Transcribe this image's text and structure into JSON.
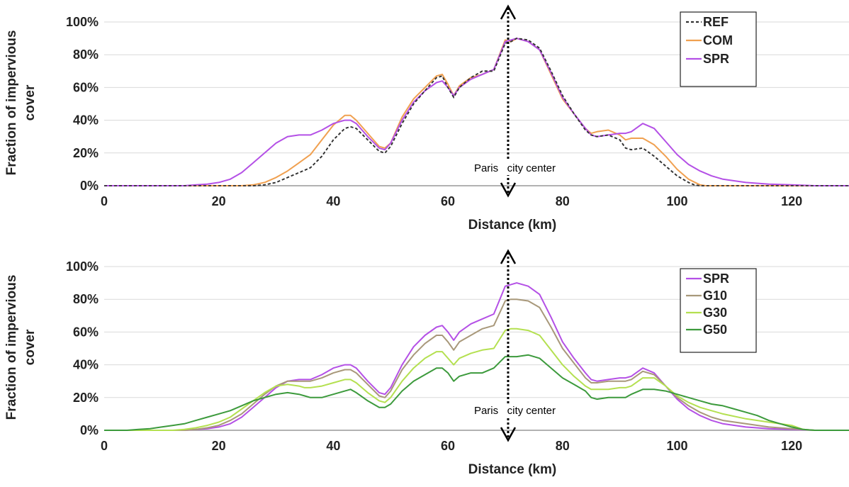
{
  "chart_data": [
    {
      "type": "line",
      "xlabel": "Distance (km)",
      "ylabel": "Fraction of impervious cover",
      "xlim": [
        0,
        130
      ],
      "ylim": [
        0,
        100
      ],
      "xticks": [
        "0",
        "20",
        "40",
        "60",
        "80",
        "100",
        "120"
      ],
      "yticks": [
        "0%",
        "20%",
        "40%",
        "60%",
        "80%",
        "100%"
      ],
      "grid": "horizontal",
      "legend": "top-right",
      "annotation": {
        "text": "Paris   city center",
        "x": 70.5
      },
      "series": [
        {
          "name": "REF",
          "color": "#333333",
          "dash": true,
          "x": [
            0,
            20,
            26,
            28,
            30,
            32,
            34,
            36,
            38,
            40,
            42,
            43,
            44,
            46,
            48,
            49,
            50,
            52,
            54,
            56,
            58,
            59,
            60,
            61,
            62,
            64,
            66,
            68,
            70,
            71,
            72,
            74,
            76,
            78,
            80,
            82,
            84,
            85,
            86,
            88,
            90,
            91,
            92,
            94,
            96,
            98,
            100,
            102,
            103,
            104,
            110,
            130
          ],
          "y": [
            0,
            0,
            0,
            0.5,
            2,
            5,
            8,
            11,
            18,
            28,
            35,
            36,
            35,
            28,
            21,
            20,
            24,
            38,
            50,
            58,
            66,
            67,
            60,
            54,
            60,
            66,
            70,
            70,
            87,
            88,
            90,
            89,
            84,
            70,
            55,
            44,
            34,
            31,
            30,
            31,
            28,
            23,
            22,
            23,
            18,
            12,
            6,
            2,
            0.5,
            0,
            0,
            0
          ]
        },
        {
          "name": "COM",
          "color": "#f0a050",
          "dash": false,
          "x": [
            0,
            20,
            24,
            26,
            28,
            30,
            32,
            34,
            36,
            38,
            40,
            42,
            43,
            44,
            46,
            48,
            49,
            50,
            52,
            54,
            56,
            58,
            59,
            60,
            61,
            62,
            64,
            66,
            68,
            70,
            71,
            72,
            74,
            76,
            78,
            80,
            82,
            84,
            85,
            86,
            88,
            90,
            91,
            92,
            94,
            96,
            98,
            100,
            102,
            104,
            105,
            110,
            130
          ],
          "y": [
            0,
            0,
            0,
            0.5,
            2,
            5,
            9,
            14,
            19,
            28,
            37,
            43,
            43,
            40,
            32,
            24,
            23,
            26,
            42,
            53,
            60,
            67,
            68,
            62,
            55,
            61,
            66,
            68,
            71,
            89,
            88,
            90,
            88,
            83,
            68,
            53,
            44,
            35,
            32,
            33,
            34,
            31,
            28,
            29,
            29,
            25,
            18,
            10,
            4,
            0.5,
            0,
            0,
            0
          ]
        },
        {
          "name": "SPR",
          "color": "#b450e6",
          "dash": false,
          "x": [
            0,
            14,
            16,
            18,
            20,
            22,
            24,
            26,
            28,
            30,
            32,
            34,
            35,
            36,
            38,
            40,
            42,
            43,
            44,
            46,
            48,
            49,
            50,
            52,
            54,
            56,
            58,
            59,
            60,
            61,
            62,
            64,
            66,
            68,
            70,
            71,
            72,
            74,
            76,
            78,
            80,
            82,
            84,
            85,
            86,
            88,
            90,
            91,
            92,
            94,
            96,
            98,
            100,
            102,
            104,
            106,
            108,
            112,
            116,
            120,
            124,
            130
          ],
          "y": [
            0,
            0,
            0.5,
            1,
            2,
            4,
            8,
            14,
            20,
            26,
            30,
            31,
            31,
            31,
            34,
            38,
            40,
            40,
            38,
            30,
            23,
            22,
            26,
            40,
            51,
            58,
            63,
            64,
            60,
            55,
            60,
            65,
            68,
            71,
            88,
            89,
            90,
            88,
            83,
            69,
            54,
            44,
            35,
            31,
            30,
            31,
            32,
            32,
            33,
            38,
            35,
            27,
            19,
            13,
            9,
            6,
            4,
            2,
            1,
            0.5,
            0,
            0
          ]
        }
      ]
    },
    {
      "type": "line",
      "xlabel": "Distance (km)",
      "ylabel": "Fraction of impervious cover",
      "xlim": [
        0,
        130
      ],
      "ylim": [
        0,
        100
      ],
      "xticks": [
        "0",
        "20",
        "40",
        "60",
        "80",
        "100",
        "120"
      ],
      "yticks": [
        "0%",
        "20%",
        "40%",
        "60%",
        "80%",
        "100%"
      ],
      "grid": "horizontal",
      "legend": "top-right",
      "annotation": {
        "text": "Paris   city center",
        "x": 70.5
      },
      "series": [
        {
          "name": "SPR",
          "color": "#b450e6",
          "dash": false,
          "x": [
            0,
            14,
            16,
            18,
            20,
            22,
            24,
            26,
            28,
            30,
            32,
            34,
            35,
            36,
            38,
            40,
            42,
            43,
            44,
            46,
            48,
            49,
            50,
            52,
            54,
            56,
            58,
            59,
            60,
            61,
            62,
            64,
            66,
            68,
            70,
            71,
            72,
            74,
            76,
            78,
            80,
            82,
            84,
            85,
            86,
            88,
            90,
            91,
            92,
            94,
            96,
            98,
            100,
            102,
            104,
            106,
            108,
            112,
            116,
            120,
            124,
            130
          ],
          "y": [
            0,
            0,
            0.5,
            1,
            2,
            4,
            8,
            14,
            20,
            26,
            30,
            31,
            31,
            31,
            34,
            38,
            40,
            40,
            38,
            30,
            23,
            22,
            26,
            40,
            51,
            58,
            63,
            64,
            60,
            55,
            60,
            65,
            68,
            71,
            88,
            89,
            90,
            88,
            83,
            69,
            54,
            44,
            35,
            31,
            30,
            31,
            32,
            32,
            33,
            38,
            35,
            27,
            19,
            13,
            9,
            6,
            4,
            2,
            1,
            0.5,
            0,
            0
          ]
        },
        {
          "name": "G10",
          "color": "#a8987a",
          "dash": false,
          "x": [
            0,
            14,
            16,
            18,
            20,
            22,
            24,
            26,
            28,
            30,
            32,
            34,
            35,
            36,
            38,
            40,
            42,
            43,
            44,
            46,
            48,
            49,
            50,
            52,
            54,
            56,
            58,
            59,
            60,
            61,
            62,
            64,
            66,
            68,
            70,
            71,
            72,
            74,
            76,
            78,
            80,
            82,
            84,
            85,
            86,
            88,
            90,
            91,
            92,
            94,
            96,
            98,
            100,
            102,
            104,
            106,
            108,
            112,
            116,
            120,
            124,
            130
          ],
          "y": [
            0,
            0,
            0.5,
            1.5,
            3,
            6,
            10,
            16,
            22,
            27,
            30,
            30,
            30,
            30,
            32,
            35,
            37,
            37,
            35,
            28,
            21,
            20,
            24,
            37,
            46,
            53,
            58,
            58,
            54,
            49,
            54,
            58,
            62,
            64,
            79,
            80,
            80,
            79,
            75,
            63,
            50,
            41,
            32,
            29,
            29,
            30,
            30,
            30,
            31,
            36,
            34,
            27,
            20,
            15,
            11,
            8,
            6,
            4,
            2,
            1,
            0,
            0
          ]
        },
        {
          "name": "G30",
          "color": "#b4e050",
          "dash": false,
          "x": [
            0,
            12,
            14,
            16,
            18,
            20,
            22,
            24,
            26,
            28,
            30,
            32,
            34,
            35,
            36,
            38,
            40,
            42,
            43,
            44,
            46,
            48,
            49,
            50,
            52,
            54,
            56,
            58,
            59,
            60,
            61,
            62,
            64,
            66,
            68,
            70,
            71,
            72,
            74,
            76,
            78,
            80,
            82,
            84,
            85,
            86,
            88,
            90,
            91,
            92,
            94,
            96,
            98,
            100,
            102,
            104,
            106,
            108,
            112,
            116,
            120,
            122,
            124,
            130
          ],
          "y": [
            0,
            0,
            0.5,
            1.5,
            3,
            5,
            8,
            13,
            18,
            23,
            27,
            28,
            27,
            26,
            26,
            27,
            29,
            31,
            31,
            29,
            23,
            18,
            17,
            20,
            30,
            38,
            44,
            48,
            48,
            44,
            40,
            44,
            47,
            49,
            50,
            61,
            62,
            62,
            61,
            58,
            49,
            40,
            33,
            27,
            25,
            25,
            25,
            26,
            26,
            27,
            32,
            32,
            27,
            21,
            17,
            14,
            12,
            10,
            7,
            5,
            3,
            0.5,
            0,
            0
          ]
        },
        {
          "name": "G50",
          "color": "#3c9a3c",
          "dash": false,
          "x": [
            0,
            4,
            6,
            8,
            10,
            12,
            14,
            16,
            18,
            20,
            22,
            24,
            26,
            28,
            30,
            32,
            34,
            35,
            36,
            38,
            40,
            42,
            43,
            44,
            46,
            48,
            49,
            50,
            52,
            54,
            56,
            58,
            59,
            60,
            61,
            62,
            64,
            66,
            68,
            70,
            71,
            72,
            74,
            76,
            78,
            80,
            82,
            84,
            85,
            86,
            88,
            90,
            91,
            92,
            94,
            96,
            98,
            100,
            102,
            104,
            106,
            108,
            110,
            112,
            114,
            116,
            118,
            120,
            122,
            124,
            130
          ],
          "y": [
            0,
            0,
            0.5,
            1,
            2,
            3,
            4,
            6,
            8,
            10,
            12,
            15,
            18,
            20,
            22,
            23,
            22,
            21,
            20,
            20,
            22,
            24,
            25,
            23,
            18,
            14,
            14,
            16,
            24,
            30,
            34,
            38,
            38,
            35,
            30,
            33,
            35,
            35,
            38,
            45,
            45,
            45,
            46,
            44,
            38,
            32,
            28,
            24,
            20,
            19,
            20,
            20,
            20,
            22,
            25,
            25,
            24,
            22,
            20,
            18,
            16,
            15,
            13,
            11,
            9,
            6,
            4,
            2,
            0.5,
            0,
            0
          ]
        }
      ]
    }
  ]
}
